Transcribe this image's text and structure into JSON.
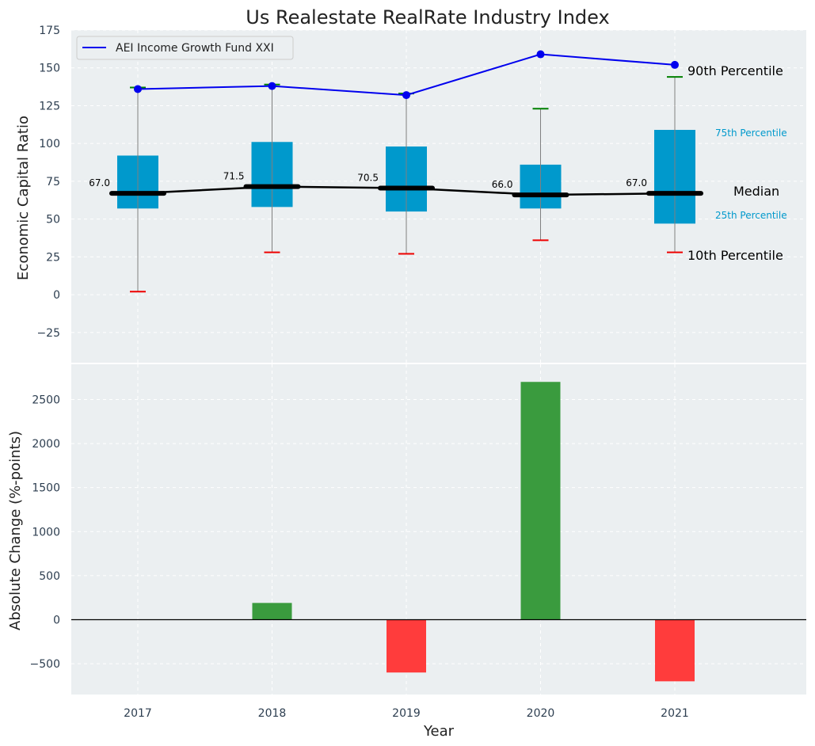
{
  "chart_data": {
    "title": "Us Realestate RealRate Industry Index",
    "xlabel": "Year",
    "categories": [
      "2017",
      "2018",
      "2019",
      "2020",
      "2021"
    ],
    "grid": true,
    "colors": {
      "background": "#ebeff1",
      "box": "#0099cc",
      "fund_line": "#0000ee",
      "median_line": "#000000",
      "whisker_top": "#008000",
      "whisker_bottom": "#ee0000",
      "bar_positive": "#3a9b3e",
      "bar_negative": "#ff3c3c"
    },
    "top_panel": {
      "type": "box",
      "ylabel": "Economic Capital Ratio",
      "ylim": [
        -45,
        175
      ],
      "yticks": [
        -25,
        0,
        25,
        50,
        75,
        100,
        125,
        150,
        175
      ],
      "ytick_labels": [
        "−25",
        "0",
        "25",
        "50",
        "75",
        "100",
        "125",
        "150",
        "175"
      ],
      "p10": [
        2,
        28,
        27,
        36,
        28
      ],
      "p25": [
        57,
        58,
        55,
        57,
        47
      ],
      "median": [
        67,
        71.5,
        70.5,
        66,
        67
      ],
      "median_labels": [
        "67.0",
        "71.5",
        "70.5",
        "66.0",
        "67.0"
      ],
      "p75": [
        92,
        101,
        98,
        86,
        109
      ],
      "p90": [
        137,
        139,
        133,
        123,
        144
      ],
      "fund_series": {
        "name": "AEI Income Growth Fund XXI",
        "values": [
          136,
          138,
          132,
          159,
          152
        ]
      },
      "legend_position": "top-left",
      "annotations": {
        "p90": "90th Percentile",
        "p75": "75th Percentile",
        "median": "Median",
        "p25": "25th Percentile",
        "p10": "10th Percentile"
      }
    },
    "bottom_panel": {
      "type": "bar",
      "ylabel": "Absolute Change (%-points)",
      "ylim": [
        -850,
        2900
      ],
      "yticks": [
        -500,
        0,
        500,
        1000,
        1500,
        2000,
        2500
      ],
      "ytick_labels": [
        "−500",
        "0",
        "500",
        "1000",
        "1500",
        "2000",
        "2500"
      ],
      "values": [
        0,
        190,
        -600,
        2700,
        -700
      ]
    }
  }
}
